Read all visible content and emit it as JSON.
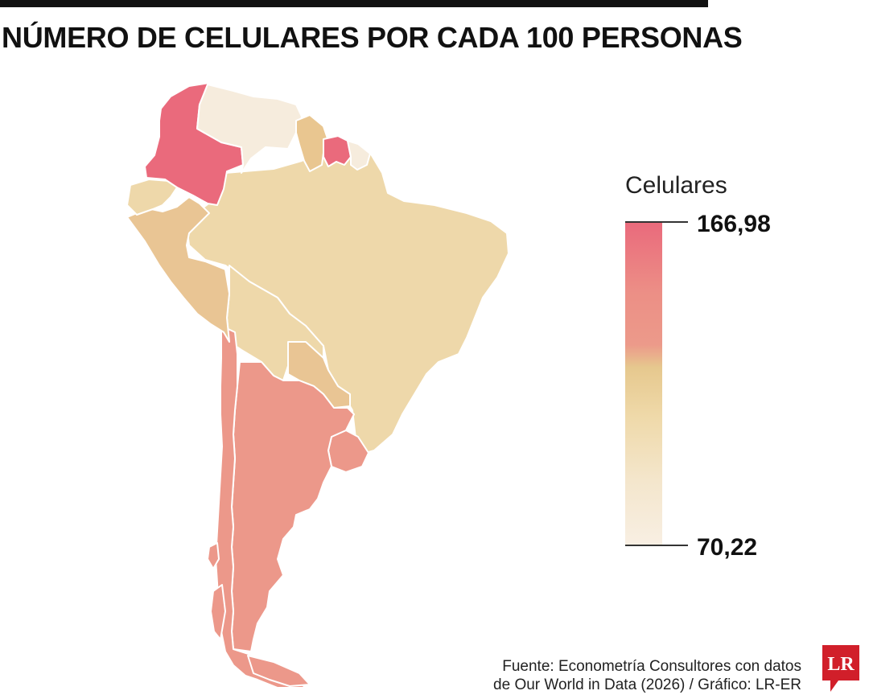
{
  "title": "NÚMERO DE CELULARES POR CADA 100 PERSONAS",
  "legend": {
    "title": "Celulares",
    "max_label": "166,98",
    "min_label": "70,22",
    "max_value": 166.98,
    "min_value": 70.22,
    "colors": [
      "#ea6a7c",
      "#ec9a8a",
      "#e6c88e",
      "#efd9a9",
      "#f8efe3"
    ]
  },
  "source": {
    "line1": "Fuente: Econometría Consultores con datos",
    "line2": "de Our World in Data (2026) / Gráfico: LR-ER"
  },
  "logo": {
    "text": "LR",
    "color": "#d11f2a"
  },
  "map": {
    "border_color": "#ffffff",
    "countries": [
      {
        "id": "colombia",
        "fill": "#ea6a7c"
      },
      {
        "id": "venezuela",
        "fill": "#f6ecdd"
      },
      {
        "id": "guyana",
        "fill": "#e9c690"
      },
      {
        "id": "suriname",
        "fill": "#ea6a7c"
      },
      {
        "id": "french-guiana",
        "fill": "#f6ecdd"
      },
      {
        "id": "ecuador",
        "fill": "#eed8aa"
      },
      {
        "id": "peru",
        "fill": "#e9c594"
      },
      {
        "id": "brazil",
        "fill": "#eed8aa"
      },
      {
        "id": "bolivia",
        "fill": "#eed8aa"
      },
      {
        "id": "paraguay",
        "fill": "#e9c594"
      },
      {
        "id": "uruguay",
        "fill": "#ec988a"
      },
      {
        "id": "argentina",
        "fill": "#ec988a"
      },
      {
        "id": "chile",
        "fill": "#ec988a"
      }
    ]
  }
}
